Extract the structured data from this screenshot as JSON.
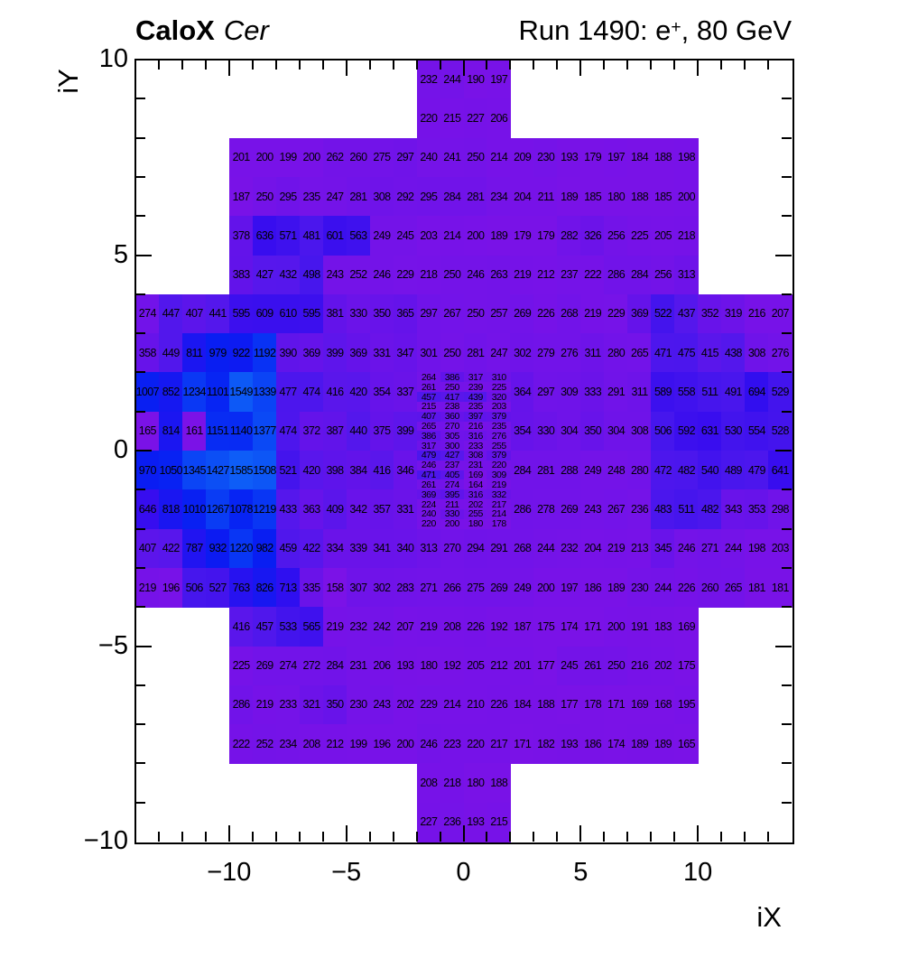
{
  "header": {
    "left_bold": "CaloX",
    "left_italic": "Cer",
    "right_prefix": "Run 1490: e",
    "right_sup": "+",
    "right_suffix": ", 80 GeV"
  },
  "chart_data": {
    "type": "heatmap",
    "x_label": "iX",
    "y_label": "iY",
    "x_range": [
      -14,
      14
    ],
    "y_range": [
      -10,
      10
    ],
    "x_ticks": [
      {
        "v": -10,
        "label": "−10"
      },
      {
        "v": -5,
        "label": "−5"
      },
      {
        "v": 0,
        "label": "0"
      },
      {
        "v": 5,
        "label": "5"
      },
      {
        "v": 10,
        "label": "10"
      }
    ],
    "y_ticks": [
      {
        "v": 10,
        "label": "10"
      },
      {
        "v": 5,
        "label": "5"
      },
      {
        "v": 0,
        "label": "0"
      },
      {
        "v": -5,
        "label": "−5"
      },
      {
        "v": -10,
        "label": "−10"
      }
    ],
    "z_min": 158,
    "z_max": 1585,
    "palette": [
      [
        158,
        "#7b12e7"
      ],
      [
        300,
        "#7013e9"
      ],
      [
        380,
        "#6313ea"
      ],
      [
        430,
        "#5617ec"
      ],
      [
        500,
        "#4716ed"
      ],
      [
        580,
        "#3d10ee"
      ],
      [
        660,
        "#360cef"
      ],
      [
        740,
        "#2c10f0"
      ],
      [
        830,
        "#1717f1"
      ],
      [
        950,
        "#0a1cf2"
      ],
      [
        1100,
        "#0725f3"
      ],
      [
        1250,
        "#0a3af4"
      ],
      [
        1420,
        "#0c4ef5"
      ],
      [
        1600,
        "#0e5ef7"
      ]
    ],
    "rows": [
      {
        "y": 10,
        "x": -2,
        "values": [
          232,
          244,
          190,
          197
        ]
      },
      {
        "y": 9,
        "x": -2,
        "values": [
          220,
          215,
          227,
          206
        ]
      },
      {
        "y": 8,
        "x": -10,
        "values": [
          201,
          200,
          199,
          200,
          262,
          260,
          275,
          297,
          240,
          241,
          250,
          214,
          209,
          230,
          193,
          179,
          197,
          184,
          188,
          198
        ]
      },
      {
        "y": 7,
        "x": -10,
        "values": [
          187,
          250,
          295,
          235,
          247,
          281,
          308,
          292,
          295,
          284,
          281,
          234,
          204,
          211,
          189,
          185,
          180,
          188,
          185,
          200
        ]
      },
      {
        "y": 6,
        "x": -10,
        "values": [
          378,
          636,
          571,
          481,
          601,
          563,
          249,
          245,
          203,
          214,
          200,
          189,
          179,
          179,
          282,
          326,
          256,
          225,
          205,
          218
        ]
      },
      {
        "y": 5,
        "x": -10,
        "values": [
          383,
          427,
          432,
          498,
          243,
          252,
          246,
          229,
          218,
          250,
          246,
          263,
          219,
          212,
          237,
          222,
          286,
          284,
          256,
          313
        ]
      },
      {
        "y": 4,
        "x": -14,
        "values": [
          274,
          447,
          407,
          441,
          595,
          609,
          610,
          595,
          381,
          330,
          350,
          365,
          297,
          267,
          250,
          257,
          269,
          226,
          268,
          219,
          229,
          369,
          522,
          437,
          352,
          319,
          216,
          207
        ]
      },
      {
        "y": 3,
        "x": -14,
        "values": [
          358,
          449,
          811,
          979,
          922,
          1192,
          390,
          369,
          399,
          369,
          331,
          347,
          301,
          250,
          281,
          247,
          302,
          279,
          276,
          311,
          280,
          265,
          471,
          475,
          415,
          438,
          308,
          276
        ]
      },
      {
        "y": 2,
        "x": -14,
        "values": [
          1007,
          852,
          1234,
          1101,
          1549,
          1339,
          477,
          474,
          416,
          420,
          354,
          337
        ]
      },
      {
        "y": 2,
        "x": 2,
        "values": [
          364,
          297,
          309,
          333,
          291,
          311,
          589,
          558,
          511,
          491,
          694,
          529
        ]
      },
      {
        "y": 1,
        "x": -14,
        "values": [
          165,
          814,
          161,
          1151,
          1140,
          1377,
          474,
          372,
          387,
          440,
          375,
          399
        ]
      },
      {
        "y": 1,
        "x": 2,
        "values": [
          354,
          330,
          304,
          350,
          304,
          308,
          506,
          592,
          631,
          530,
          554,
          528
        ]
      },
      {
        "y": 0,
        "x": -14,
        "values": [
          970,
          1050,
          1345,
          1427,
          1585,
          1508,
          521,
          420,
          398,
          384,
          416,
          346
        ]
      },
      {
        "y": 0,
        "x": 2,
        "values": [
          284,
          281,
          288,
          249,
          248,
          280,
          472,
          482,
          540,
          489,
          479,
          641
        ]
      },
      {
        "y": -1,
        "x": -14,
        "values": [
          646,
          818,
          1010,
          1267,
          1078,
          1219,
          433,
          363,
          409,
          342,
          357,
          331
        ]
      },
      {
        "y": -1,
        "x": 2,
        "values": [
          286,
          278,
          269,
          243,
          267,
          236,
          483,
          511,
          482,
          343,
          353,
          298
        ]
      },
      {
        "y": -2,
        "x": -14,
        "values": [
          407,
          422,
          787,
          932,
          1220,
          982,
          459,
          422,
          334,
          339,
          341,
          340,
          313,
          270,
          294,
          291,
          268,
          244,
          232,
          204,
          219,
          213,
          345,
          246,
          271,
          244,
          198,
          203
        ]
      },
      {
        "y": -3,
        "x": -14,
        "values": [
          219,
          196,
          506,
          527,
          763,
          826,
          713,
          335,
          158,
          307,
          302,
          283,
          271,
          266,
          275,
          269,
          249,
          200,
          197,
          186,
          189,
          230,
          244,
          226,
          260,
          265,
          181,
          181
        ]
      },
      {
        "y": -4,
        "x": -10,
        "values": [
          416,
          457,
          533,
          565,
          219,
          232,
          242,
          207,
          219,
          208,
          226,
          192,
          187,
          175,
          174,
          171,
          200,
          191,
          183,
          169
        ]
      },
      {
        "y": -5,
        "x": -10,
        "values": [
          225,
          269,
          274,
          272,
          284,
          231,
          206,
          193,
          180,
          192,
          205,
          212,
          201,
          177,
          245,
          261,
          250,
          216,
          202,
          175
        ]
      },
      {
        "y": -6,
        "x": -10,
        "values": [
          286,
          219,
          233,
          321,
          350,
          230,
          243,
          202,
          229,
          214,
          210,
          226,
          184,
          188,
          177,
          178,
          171,
          169,
          168,
          195
        ]
      },
      {
        "y": -7,
        "x": -10,
        "values": [
          222,
          252,
          234,
          208,
          212,
          199,
          196,
          200,
          246,
          223,
          220,
          217,
          171,
          182,
          193,
          186,
          174,
          189,
          189,
          165
        ]
      },
      {
        "y": -8,
        "x": -2,
        "values": [
          208,
          218,
          180,
          188
        ]
      },
      {
        "y": -9,
        "x": -2,
        "values": [
          227,
          236,
          193,
          215
        ]
      }
    ],
    "fine_block": {
      "x": -2,
      "y": 2,
      "cell_w": 1,
      "cell_h": 0.25,
      "values": [
        [
          264,
          386,
          317,
          310
        ],
        [
          261,
          250,
          239,
          225
        ],
        [
          457,
          417,
          439,
          320
        ],
        [
          215,
          238,
          235,
          203
        ],
        [
          407,
          360,
          397,
          379
        ],
        [
          265,
          270,
          216,
          235
        ],
        [
          386,
          305,
          316,
          276
        ],
        [
          317,
          300,
          233,
          255
        ],
        [
          479,
          427,
          308,
          379
        ],
        [
          246,
          237,
          231,
          220
        ],
        [
          471,
          405,
          169,
          309
        ],
        [
          261,
          274,
          164,
          219
        ],
        [
          369,
          395,
          316,
          332
        ],
        [
          224,
          211,
          202,
          217
        ],
        [
          240,
          330,
          255,
          214
        ],
        [
          220,
          200,
          180,
          178
        ]
      ]
    }
  }
}
